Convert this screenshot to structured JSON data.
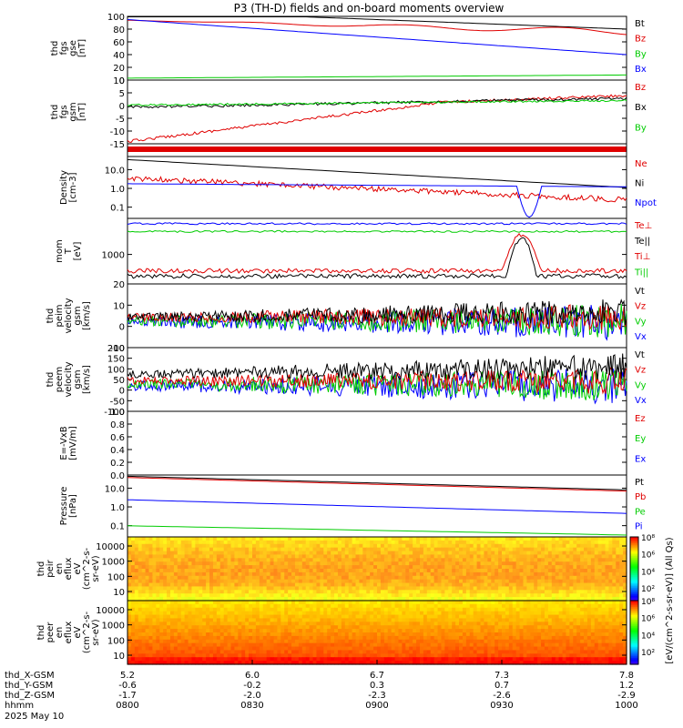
{
  "title": "P3 (TH-D) fields and on-board moments overview",
  "colors": {
    "black": "#000000",
    "red": "#e00000",
    "green": "#00cc00",
    "blue": "#0000ff"
  },
  "panels": [
    {
      "id": "fgs-gse",
      "ylabel": [
        "thd",
        "fgs",
        "gse",
        "[nT]"
      ],
      "yticks": [
        "0",
        "20",
        "40",
        "60",
        "80",
        "100"
      ],
      "ylim": [
        0,
        100
      ],
      "series": [
        {
          "name": "Bt",
          "color": "black"
        },
        {
          "name": "Bz",
          "color": "red"
        },
        {
          "name": "By",
          "color": "green"
        },
        {
          "name": "Bx",
          "color": "blue"
        }
      ]
    },
    {
      "id": "fgs-gsm",
      "ylabel": [
        "thd",
        "fgs",
        "gsm",
        "[nT]"
      ],
      "yticks": [
        "-15",
        "-10",
        "-5",
        "0",
        "5",
        "10"
      ],
      "ylim": [
        -18,
        10
      ],
      "series": [
        {
          "name": "Bz",
          "color": "red"
        },
        {
          "name": "Bx",
          "color": "black"
        },
        {
          "name": "By",
          "color": "green"
        }
      ]
    },
    {
      "id": "flag-bar",
      "ylabel": [],
      "yticks": [],
      "series": []
    },
    {
      "id": "density",
      "ylabel": [
        "Density",
        "[cm-3]"
      ],
      "yticks": [
        "0.1",
        "1.0",
        "10.0"
      ],
      "ylim": [
        0.05,
        25
      ],
      "scale": "log",
      "series": [
        {
          "name": "Ne",
          "color": "red"
        },
        {
          "name": "Ni",
          "color": "black"
        },
        {
          "name": "Npot",
          "color": "blue"
        }
      ]
    },
    {
      "id": "temperature",
      "ylabel": [
        "mom",
        "T",
        "[eV]"
      ],
      "yticks": [
        "1000"
      ],
      "ylim": [
        100,
        5000
      ],
      "scale": "log",
      "series": [
        {
          "name": "Te⊥",
          "color": "red"
        },
        {
          "name": "Te||",
          "color": "black"
        },
        {
          "name": "Ti⊥",
          "color": "red"
        },
        {
          "name": "Ti||",
          "color": "green"
        }
      ]
    },
    {
      "id": "peim-velocity",
      "ylabel": [
        "thd",
        "peim",
        "velocity",
        "gsm",
        "[km/s]"
      ],
      "yticks": [
        "-10",
        "0",
        "10",
        "20"
      ],
      "ylim": [
        -15,
        22
      ],
      "series": [
        {
          "name": "Vt",
          "color": "black"
        },
        {
          "name": "Vz",
          "color": "red"
        },
        {
          "name": "Vy",
          "color": "green"
        },
        {
          "name": "Vx",
          "color": "blue"
        }
      ]
    },
    {
      "id": "peem-velocity",
      "ylabel": [
        "thd",
        "peem",
        "velocity",
        "gsm",
        "[km/s]"
      ],
      "yticks": [
        "-100",
        "-50",
        "0",
        "50",
        "100",
        "150",
        "200"
      ],
      "ylim": [
        -110,
        205
      ],
      "series": [
        {
          "name": "Vt",
          "color": "black"
        },
        {
          "name": "Vz",
          "color": "red"
        },
        {
          "name": "Vy",
          "color": "green"
        },
        {
          "name": "Vx",
          "color": "blue"
        }
      ]
    },
    {
      "id": "efield",
      "ylabel": [
        "E=-VxB",
        "[mV/m]"
      ],
      "yticks": [
        "0.0",
        "0.2",
        "0.4",
        "0.6",
        "0.8",
        "1.0"
      ],
      "ylim": [
        0,
        1
      ],
      "series": [
        {
          "name": "Ez",
          "color": "red"
        },
        {
          "name": "Ey",
          "color": "green"
        },
        {
          "name": "Ex",
          "color": "blue"
        }
      ]
    },
    {
      "id": "pressure",
      "ylabel": [
        "Pressure",
        "[nPa]"
      ],
      "yticks": [
        "0.1",
        "1.0",
        "10.0"
      ],
      "ylim": [
        0.06,
        20
      ],
      "scale": "log",
      "series": [
        {
          "name": "Pt",
          "color": "black"
        },
        {
          "name": "Pb",
          "color": "red"
        },
        {
          "name": "Pe",
          "color": "green"
        },
        {
          "name": "Pi",
          "color": "blue"
        }
      ]
    },
    {
      "id": "peir-spectrogram",
      "ylabel": [
        "thd",
        "peir",
        "en",
        "eflux",
        "eV",
        "(cm^2-s-",
        "sr-eV)"
      ],
      "yticks": [
        "10",
        "100",
        "1000",
        "10000"
      ],
      "series": []
    },
    {
      "id": "peer-spectrogram",
      "ylabel": [
        "thd",
        "peer",
        "en",
        "eflux",
        "eV",
        "(cm^2-s-",
        "sr-eV)"
      ],
      "yticks": [
        "10",
        "100",
        "1000",
        "10000"
      ],
      "series": []
    }
  ],
  "colorbar": {
    "ticks": [
      "10²",
      "10⁴",
      "10⁶",
      "10⁸"
    ],
    "label": "[eV/(cm^2-s-sr-eV)] (All Qs)"
  },
  "xaxis": {
    "rows": [
      {
        "label": "thd_X-GSM",
        "values": [
          "5.2",
          "6.0",
          "6.7",
          "7.3",
          "7.8"
        ]
      },
      {
        "label": "thd_Y-GSM",
        "values": [
          "-0.6",
          "-0.2",
          "0.3",
          "0.7",
          "1.2"
        ]
      },
      {
        "label": "thd_Z-GSM",
        "values": [
          "-1.7",
          "-2.0",
          "-2.3",
          "-2.6",
          "-2.9"
        ]
      },
      {
        "label": "hhmm",
        "values": [
          "0800",
          "0830",
          "0900",
          "0930",
          "1000"
        ]
      }
    ],
    "date": "2025 May 10"
  }
}
